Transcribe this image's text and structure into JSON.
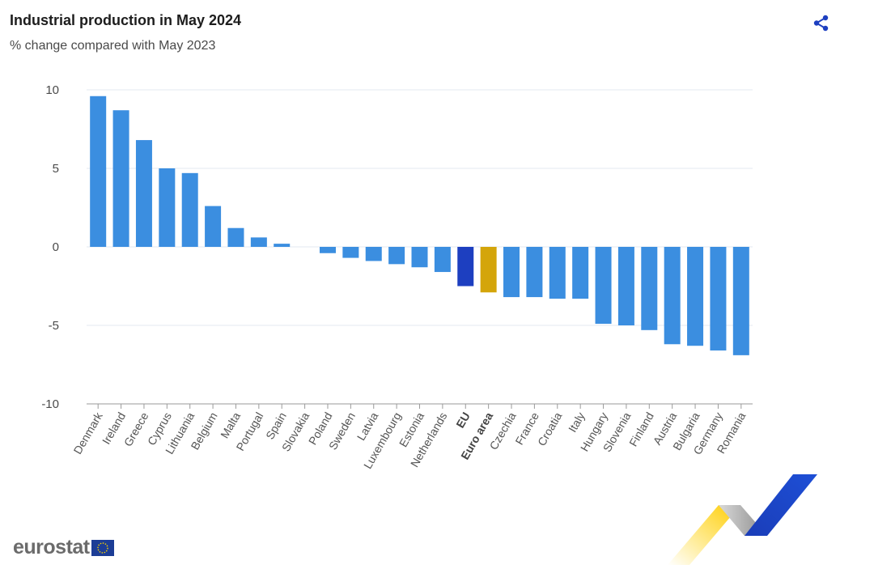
{
  "header": {
    "title": "Industrial production in May 2024",
    "subtitle": "% change compared with May 2023"
  },
  "share": {
    "icon": "share-icon"
  },
  "logo": {
    "text": "eurostat",
    "flag_icon": "eu-flag-icon"
  },
  "colors": {
    "country": "#3b8ee0",
    "eu": "#1d3fc0",
    "euro_area": "#d4a50a",
    "grid": "#e3e8f0",
    "axis": "#9a9a9a"
  },
  "chart_data": {
    "type": "bar",
    "title": "Industrial production in May 2024",
    "subtitle": "% change compared with May 2023",
    "xlabel": "",
    "ylabel": "",
    "ylim": [
      -10,
      10
    ],
    "yticks": [
      10,
      5,
      0,
      -5,
      -10
    ],
    "grid": true,
    "categories": [
      "Denmark",
      "Ireland",
      "Greece",
      "Cyprus",
      "Lithuania",
      "Belgium",
      "Malta",
      "Portugal",
      "Spain",
      "Slovakia",
      "Poland",
      "Sweden",
      "Latvia",
      "Luxembourg",
      "Estonia",
      "Netherlands",
      "EU",
      "Euro area",
      "Czechia",
      "France",
      "Croatia",
      "Italy",
      "Hungary",
      "Slovenia",
      "Finland",
      "Austria",
      "Bulgaria",
      "Germany",
      "Romania"
    ],
    "values": [
      9.6,
      8.7,
      6.8,
      5.0,
      4.7,
      2.6,
      1.2,
      0.6,
      0.2,
      0.0,
      -0.4,
      -0.7,
      -0.9,
      -1.1,
      -1.3,
      -1.6,
      -2.5,
      -2.9,
      -3.2,
      -3.2,
      -3.3,
      -3.3,
      -4.9,
      -5.0,
      -5.3,
      -6.2,
      -6.3,
      -6.6,
      -6.9
    ],
    "highlight": {
      "EU": "eu",
      "Euro area": "euro_area"
    },
    "bold_categories": [
      "EU",
      "Euro area"
    ]
  }
}
